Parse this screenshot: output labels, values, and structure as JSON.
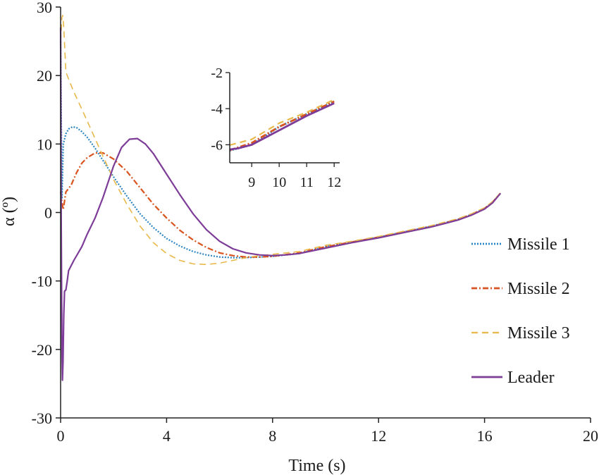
{
  "chart_data": {
    "type": "line",
    "xlabel": "Time (s)",
    "ylabel": "α (º)",
    "xlim": [
      0,
      20
    ],
    "ylim": [
      -30,
      30
    ],
    "x_ticks": [
      0,
      4,
      8,
      12,
      16,
      20
    ],
    "y_ticks": [
      30,
      20,
      10,
      0,
      -10,
      -20,
      -30
    ],
    "grid": false,
    "legend_position": "right",
    "series": [
      {
        "name": "Missile 1",
        "color": "#2e86c1",
        "style": "dotted",
        "x": [
          0,
          0.05,
          0.1,
          0.2,
          0.3,
          0.45,
          0.6,
          0.8,
          1.0,
          1.3,
          1.6,
          2.0,
          2.5,
          3.0,
          3.5,
          4.0,
          4.5,
          5.0,
          5.5,
          6.0,
          6.5,
          7.0,
          7.5,
          8.0,
          9.0,
          10.0,
          11.0,
          12.0,
          13.0,
          14.0,
          15.0,
          15.5,
          16.0,
          16.3,
          16.6
        ],
        "y": [
          25,
          2,
          10,
          11.5,
          12.2,
          12.5,
          12.4,
          11.8,
          11.0,
          9.4,
          7.6,
          5.2,
          2.4,
          -0.2,
          -2.2,
          -3.8,
          -4.9,
          -5.7,
          -6.2,
          -6.5,
          -6.6,
          -6.6,
          -6.5,
          -6.4,
          -6.0,
          -5.0,
          -4.3,
          -3.6,
          -2.8,
          -2.0,
          -1.0,
          -0.3,
          0.6,
          1.5,
          2.8
        ]
      },
      {
        "name": "Missile 2",
        "color": "#d9541e",
        "style": "dashdot",
        "x": [
          0,
          0.05,
          0.1,
          0.2,
          0.3,
          0.4,
          0.6,
          0.8,
          1.0,
          1.3,
          1.6,
          2.0,
          2.5,
          3.0,
          3.5,
          4.0,
          4.5,
          5.0,
          5.5,
          6.0,
          6.5,
          7.0,
          7.5,
          8.0,
          9.0,
          10.0,
          11.0,
          12.0,
          13.0,
          14.0,
          15.0,
          15.5,
          16.0,
          16.3,
          16.6
        ],
        "y": [
          3,
          1.5,
          0.4,
          3.0,
          3.5,
          4.0,
          5.8,
          7.2,
          8.0,
          8.7,
          8.7,
          7.8,
          6.0,
          3.6,
          1.2,
          -0.8,
          -2.6,
          -4.0,
          -5.1,
          -5.9,
          -6.3,
          -6.5,
          -6.5,
          -6.4,
          -5.9,
          -5.0,
          -4.3,
          -3.6,
          -2.8,
          -2.0,
          -1.0,
          -0.3,
          0.6,
          1.5,
          2.8
        ]
      },
      {
        "name": "Missile 3",
        "color": "#e8b94a",
        "style": "dashed",
        "x": [
          0,
          0.05,
          0.08,
          0.12,
          0.2,
          0.3,
          0.5,
          0.8,
          1.0,
          1.3,
          1.6,
          2.0,
          2.5,
          3.0,
          3.5,
          4.0,
          4.5,
          5.0,
          5.5,
          6.0,
          6.5,
          7.0,
          7.5,
          8.0,
          9.0,
          10.0,
          11.0,
          12.0,
          13.0,
          14.0,
          15.0,
          15.5,
          16.0,
          16.3,
          16.6
        ],
        "y": [
          25,
          28.5,
          28.8,
          27.0,
          20.5,
          19.5,
          17.6,
          15.1,
          13.4,
          10.8,
          8.2,
          4.8,
          1.2,
          -2.0,
          -4.4,
          -6.0,
          -7.0,
          -7.5,
          -7.6,
          -7.4,
          -7.0,
          -6.6,
          -6.3,
          -6.1,
          -5.7,
          -4.8,
          -4.2,
          -3.5,
          -2.7,
          -1.9,
          -0.9,
          -0.2,
          0.7,
          1.6,
          2.9
        ]
      },
      {
        "name": "Leader",
        "color": "#7d3c98",
        "style": "solid",
        "x": [
          0,
          0.02,
          0.05,
          0.07,
          0.09,
          0.12,
          0.15,
          0.2,
          0.25,
          0.3,
          0.5,
          0.8,
          1.0,
          1.3,
          1.6,
          2.0,
          2.3,
          2.6,
          2.9,
          3.2,
          3.5,
          4.0,
          4.5,
          5.0,
          5.5,
          6.0,
          6.5,
          7.0,
          7.5,
          8.0,
          8.5,
          9.0,
          10.0,
          11.0,
          12.0,
          13.0,
          14.0,
          15.0,
          15.5,
          16.0,
          16.3,
          16.6
        ],
        "y": [
          27,
          0,
          -20,
          -24.5,
          -22,
          -15,
          -11.5,
          -11.3,
          -10.0,
          -8.5,
          -7.0,
          -5.0,
          -3.2,
          -0.8,
          2.2,
          6.8,
          9.5,
          10.7,
          10.8,
          10.0,
          8.6,
          5.6,
          2.6,
          -0.2,
          -2.5,
          -4.2,
          -5.3,
          -5.9,
          -6.2,
          -6.3,
          -6.2,
          -6.0,
          -5.2,
          -4.4,
          -3.7,
          -2.9,
          -2.1,
          -1.1,
          -0.4,
          0.5,
          1.4,
          2.8
        ]
      }
    ],
    "inset": {
      "xlim": [
        8.2,
        12.2
      ],
      "ylim": [
        -7,
        -2
      ],
      "x_ticks": [
        9,
        10,
        11,
        12
      ],
      "y_ticks": [
        -2,
        -4,
        -6
      ],
      "x_tick_labels": [
        "9",
        "10",
        "11",
        "12"
      ],
      "y_tick_labels": [
        "-2",
        "-4",
        "-6"
      ]
    }
  }
}
